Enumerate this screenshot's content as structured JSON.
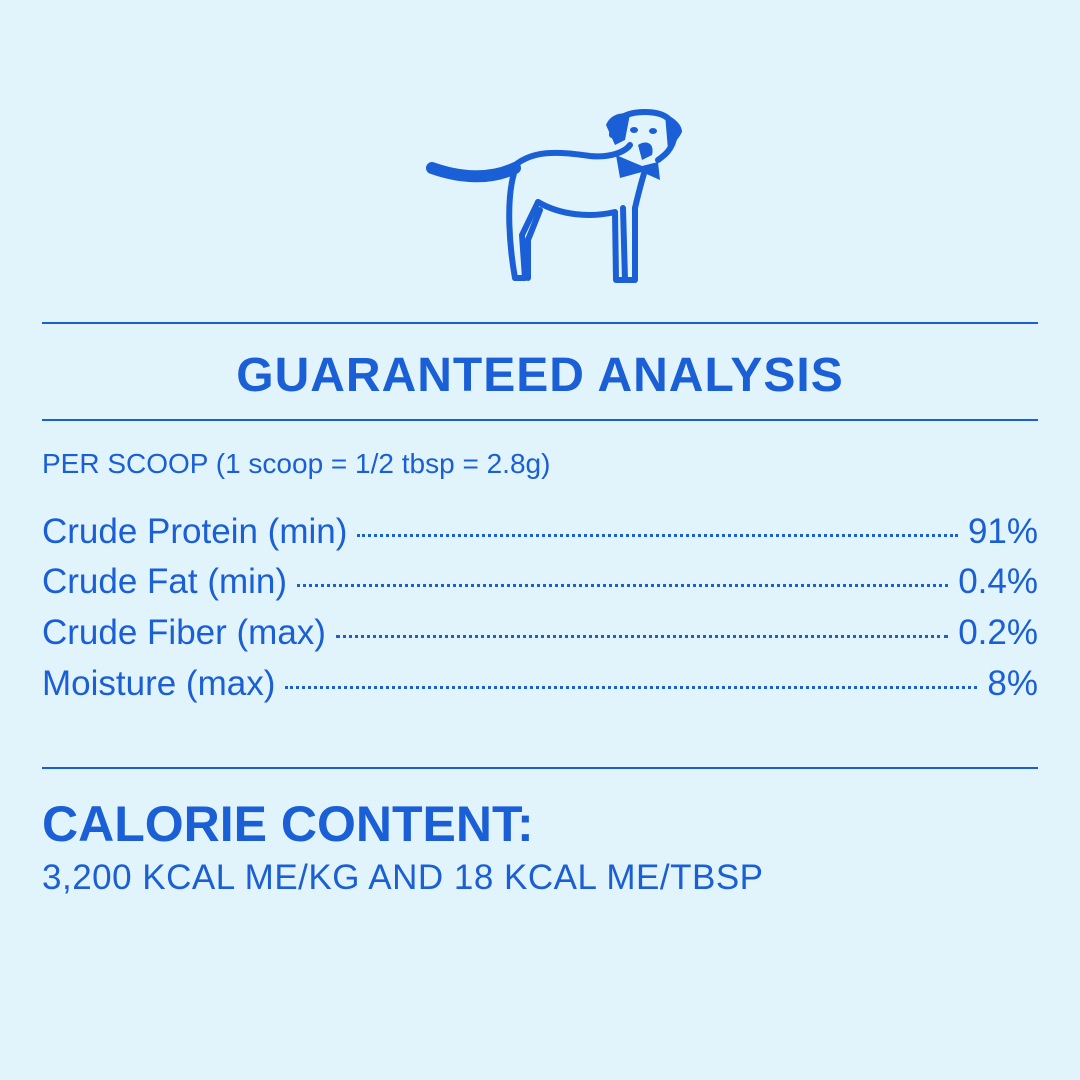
{
  "colors": {
    "background": "#e1f4fb",
    "accent": "#1a5fd6"
  },
  "illustration": "dog-with-bowtie",
  "title": "GUARANTEED ANALYSIS",
  "serving": "PER SCOOP (1 scoop = 1/2 tbsp = 2.8g)",
  "rows": [
    {
      "label": "Crude Protein (min)",
      "value": "91%"
    },
    {
      "label": "Crude Fat (min)",
      "value": "0.4%"
    },
    {
      "label": "Crude Fiber (max)",
      "value": "0.2%"
    },
    {
      "label": "Moisture (max)",
      "value": "8%"
    }
  ],
  "calorie": {
    "heading": "CALORIE CONTENT:",
    "value": "3,200 KCAL ME/KG AND 18 KCAL ME/TBSP"
  }
}
